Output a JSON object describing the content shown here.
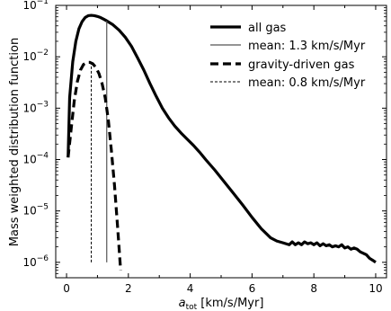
{
  "chart_data": {
    "type": "line",
    "title": "",
    "xlabel_main": "a",
    "xlabel_sub": "tot",
    "xlabel_units": " [km/s/Myr]",
    "ylabel": "Mass weighted distribution function",
    "xlim": [
      -0.35,
      10.35
    ],
    "ylim_log10": [
      -6.3,
      -1.0
    ],
    "y_scale": "log",
    "grid": false,
    "legend_position": "top-right",
    "x_ticks": [
      0,
      2,
      4,
      6,
      8,
      10
    ],
    "x_tick_labels": [
      "0",
      "2",
      "4",
      "6",
      "8",
      "10"
    ],
    "y_ticks_log10": [
      -6,
      -5,
      -4,
      -3,
      -2,
      -1
    ],
    "y_tick_labels": [
      {
        "base": "10",
        "exp": "−6"
      },
      {
        "base": "10",
        "exp": "−5"
      },
      {
        "base": "10",
        "exp": "−4"
      },
      {
        "base": "10",
        "exp": "−3"
      },
      {
        "base": "10",
        "exp": "−2"
      },
      {
        "base": "10",
        "exp": "−1"
      }
    ],
    "series": [
      {
        "name": "all gas",
        "style": "solid-thick",
        "color": "#000000",
        "x": [
          0.05,
          0.1,
          0.2,
          0.3,
          0.4,
          0.5,
          0.6,
          0.7,
          0.8,
          0.9,
          1.0,
          1.1,
          1.2,
          1.3,
          1.5,
          1.7,
          1.9,
          2.1,
          2.3,
          2.5,
          2.7,
          2.9,
          3.1,
          3.3,
          3.5,
          3.7,
          3.9,
          4.1,
          4.3,
          4.5,
          4.8,
          5.1,
          5.4,
          5.7,
          6.0,
          6.3,
          6.6,
          6.8,
          7.0,
          7.2,
          7.3,
          7.4,
          7.5,
          7.6,
          7.7,
          7.8,
          7.9,
          8.0,
          8.1,
          8.2,
          8.3,
          8.4,
          8.5,
          8.6,
          8.7,
          8.8,
          8.9,
          9.0,
          9.1,
          9.2,
          9.3,
          9.4,
          9.5,
          9.6,
          9.7,
          9.8,
          9.9,
          10.0
        ],
        "values": [
          0.00011,
          0.0016,
          0.008,
          0.02,
          0.035,
          0.048,
          0.058,
          0.063,
          0.064,
          0.063,
          0.061,
          0.058,
          0.054,
          0.05,
          0.042,
          0.033,
          0.024,
          0.016,
          0.0095,
          0.0055,
          0.003,
          0.0017,
          0.001,
          0.00065,
          0.00045,
          0.00033,
          0.00025,
          0.00019,
          0.00014,
          0.0001,
          6.2e-05,
          3.7e-05,
          2.2e-05,
          1.3e-05,
          7.5e-06,
          4.5e-06,
          3e-06,
          2.6e-06,
          2.4e-06,
          2.2e-06,
          2.5e-06,
          2.2e-06,
          2.4e-06,
          2.2e-06,
          2.5e-06,
          2.3e-06,
          2.4e-06,
          2.2e-06,
          2.4e-06,
          2.1e-06,
          2.3e-06,
          2.1e-06,
          2.2e-06,
          2e-06,
          2.1e-06,
          2e-06,
          2.2e-06,
          1.9e-06,
          2e-06,
          1.8e-06,
          1.9e-06,
          1.8e-06,
          1.6e-06,
          1.5e-06,
          1.4e-06,
          1.2e-06,
          1.1e-06,
          1e-06
        ]
      },
      {
        "name": "mean: 1.3 km/s/Myr",
        "style": "vertical-solid-thin",
        "color": "#555555",
        "x": [
          1.3,
          1.3
        ],
        "values": [
          1e-06,
          0.05
        ]
      },
      {
        "name": "gravity-driven gas",
        "style": "dashed-thick",
        "color": "#000000",
        "x": [
          0.05,
          0.15,
          0.25,
          0.35,
          0.45,
          0.55,
          0.65,
          0.75,
          0.85,
          0.95,
          1.05,
          1.15,
          1.25,
          1.35,
          1.45,
          1.55,
          1.65,
          1.75
        ],
        "values": [
          0.00011,
          0.0004,
          0.0014,
          0.0033,
          0.0055,
          0.0071,
          0.0078,
          0.0078,
          0.0073,
          0.0062,
          0.0047,
          0.003,
          0.0016,
          0.0006,
          0.00015,
          3.2e-05,
          5e-06,
          7e-07
        ]
      },
      {
        "name": "mean: 0.8 km/s/Myr",
        "style": "vertical-dashed-thin",
        "color": "#000000",
        "x": [
          0.8,
          0.8
        ],
        "values": [
          1e-06,
          0.0078
        ]
      }
    ]
  }
}
